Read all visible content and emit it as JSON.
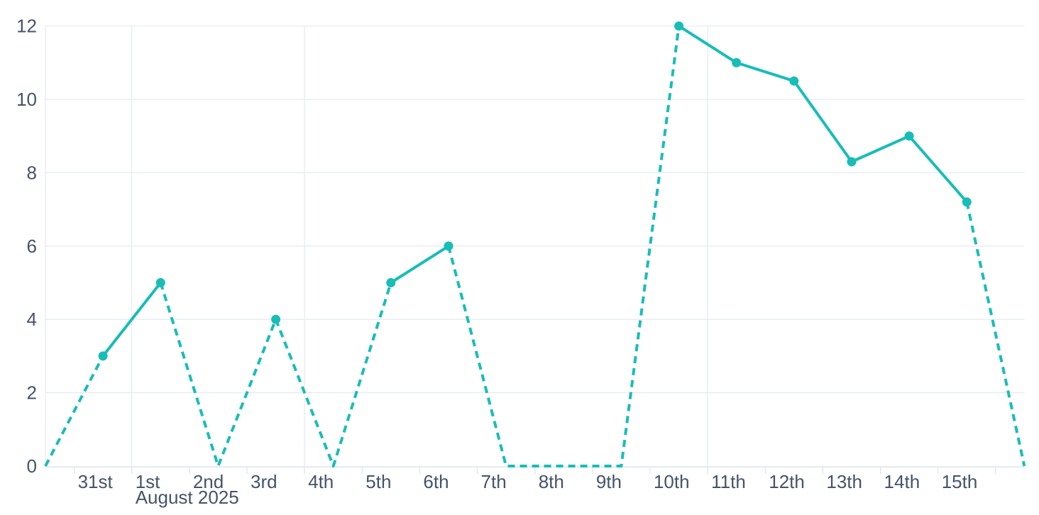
{
  "chart_data": {
    "type": "line",
    "title": "",
    "legend": "none",
    "grid": "on",
    "x_tick_labels": [
      "",
      "31st",
      "1st",
      "2nd",
      "3rd",
      "4th",
      "5th",
      "6th",
      "7th",
      "8th",
      "9th",
      "10th",
      "11th",
      "12th",
      "13th",
      "14th",
      "15th",
      ""
    ],
    "month_label": "August 2025",
    "month_label_index": 2,
    "values": [
      0,
      3,
      5,
      0,
      4,
      0,
      5,
      6,
      0,
      0,
      0,
      12,
      11,
      10.5,
      8.3,
      9,
      7.2,
      0
    ],
    "segment_styles": [
      "dashed",
      "solid",
      "dashed",
      "dashed",
      "dashed",
      "dashed",
      "solid",
      "dashed",
      "dashed",
      "dashed",
      "dashed",
      "solid",
      "solid",
      "solid",
      "solid",
      "solid",
      "dashed"
    ],
    "markers_on_nonzero_points_only": true,
    "y_ticks": [
      0,
      2,
      4,
      6,
      8,
      10,
      12
    ],
    "ylim": [
      0,
      12
    ],
    "vertical_gridline_after_index": [
      1,
      4,
      11
    ],
    "colors": {
      "line": "#18BDB7",
      "marker": "#18BDB7",
      "grid": "#E5E9F2",
      "axis": "#DDE3EE",
      "label": "#46536A",
      "background": "#FFFFFF"
    }
  }
}
